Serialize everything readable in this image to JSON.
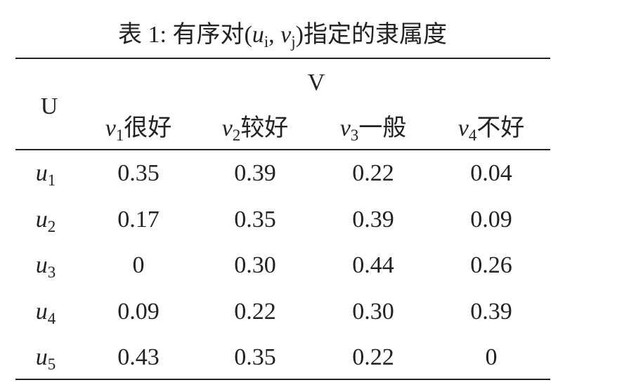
{
  "caption": [
    {
      "text": "表 1: 有序对("
    },
    {
      "var": "u",
      "sub": "i"
    },
    {
      "text": ", "
    },
    {
      "var": "v",
      "sub": "j"
    },
    {
      "text": ")指定的隶属度"
    }
  ],
  "table": {
    "row_header": "U",
    "group_header": "V",
    "columns": [
      {
        "var": "v",
        "sub": "1",
        "label": "很好"
      },
      {
        "var": "v",
        "sub": "2",
        "label": "较好"
      },
      {
        "var": "v",
        "sub": "3",
        "label": "一般"
      },
      {
        "var": "v",
        "sub": "4",
        "label": "不好"
      }
    ],
    "rows": [
      {
        "var": "u",
        "sub": "1",
        "cells": [
          "0.35",
          "0.39",
          "0.22",
          "0.04"
        ]
      },
      {
        "var": "u",
        "sub": "2",
        "cells": [
          "0.17",
          "0.35",
          "0.39",
          "0.09"
        ]
      },
      {
        "var": "u",
        "sub": "3",
        "cells": [
          "0",
          "0.30",
          "0.44",
          "0.26"
        ]
      },
      {
        "var": "u",
        "sub": "4",
        "cells": [
          "0.09",
          "0.22",
          "0.30",
          "0.39"
        ]
      },
      {
        "var": "u",
        "sub": "5",
        "cells": [
          "0.43",
          "0.35",
          "0.22",
          "0"
        ]
      }
    ]
  }
}
